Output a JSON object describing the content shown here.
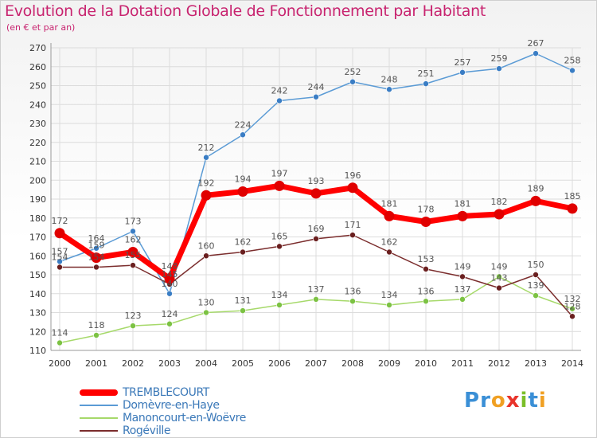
{
  "title": "Evolution de la Dotation Globale de Fonctionnement par Habitant",
  "subtitle": "(en € et par an)",
  "logo": {
    "text": "Proxiti",
    "letters": [
      "P",
      "r",
      "o",
      "x",
      "i",
      "t",
      "i"
    ],
    "colors": [
      "#3a8fd6",
      "#3a8fd6",
      "#f0a023",
      "#e8332a",
      "#7bbf2a",
      "#3a8fd6",
      "#f0a023"
    ]
  },
  "chart_data": {
    "type": "line",
    "title": "Evolution de la Dotation Globale de Fonctionnement par Habitant",
    "subtitle": "(en € et par an)",
    "x": [
      "2000",
      "2001",
      "2002",
      "2003",
      "2004",
      "2005",
      "2006",
      "2007",
      "2008",
      "2009",
      "2010",
      "2011",
      "2012",
      "2013",
      "2014"
    ],
    "ylim": [
      110,
      270
    ],
    "yticks": [
      110,
      120,
      130,
      140,
      150,
      160,
      170,
      180,
      190,
      200,
      210,
      220,
      230,
      240,
      250,
      260,
      270
    ],
    "grid": true,
    "legend_position": "bottom-left",
    "series": [
      {
        "name": "Domèvre-en-Haye",
        "color": "#5b9bd5",
        "marker": "#3a7dc4",
        "values": [
          157,
          164,
          173,
          140,
          212,
          224,
          242,
          244,
          252,
          248,
          251,
          257,
          259,
          267,
          258
        ]
      },
      {
        "name": "Manoncourt-en-Woëvre",
        "color": "#a6d96a",
        "marker": "#7cc243",
        "values": [
          114,
          118,
          123,
          124,
          130,
          131,
          134,
          137,
          136,
          134,
          136,
          137,
          149,
          139,
          132
        ]
      },
      {
        "name": "Rogéville",
        "color": "#7b2d2d",
        "marker": "#6a1f1f",
        "values": [
          154,
          154,
          155,
          145,
          160,
          162,
          165,
          169,
          171,
          162,
          153,
          149,
          143,
          150,
          128
        ]
      },
      {
        "name": "TREMBLECOURT",
        "color": "#ff0000",
        "marker": "#e00000",
        "values": [
          172,
          159,
          162,
          148,
          192,
          194,
          197,
          193,
          196,
          181,
          178,
          181,
          182,
          189,
          185
        ]
      }
    ],
    "legend": [
      "TREMBLECOURT",
      "Domèvre-en-Haye",
      "Manoncourt-en-Woëvre",
      "Rogéville"
    ]
  }
}
